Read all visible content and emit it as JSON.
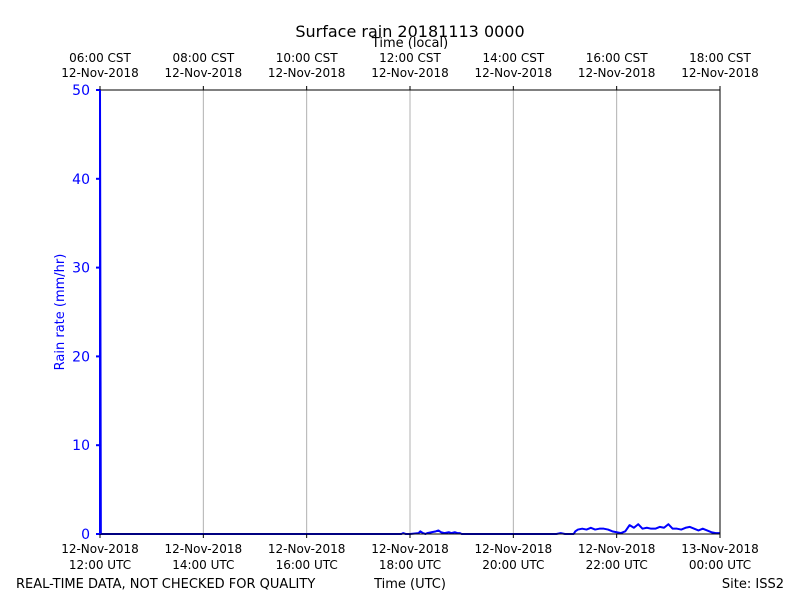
{
  "chart_data": {
    "type": "line",
    "title": "Surface rain 20181113 0000",
    "xlabel": "Time (UTC)",
    "x2label": "Time (local)",
    "ylabel": "Rain rate (mm/hr)",
    "footer_left": "REAL-TIME DATA, NOT CHECKED FOR QUALITY",
    "footer_right": "Site: ISS2",
    "xlim": [
      "2018-11-12 12:00",
      "2018-11-13 00:00"
    ],
    "ylim": [
      0,
      50
    ],
    "yticks": [
      0,
      10,
      20,
      30,
      40,
      50
    ],
    "grid": "vertical",
    "xticks_bottom": [
      {
        "t": "2018-11-12 12:00",
        "line1": "12-Nov-2018",
        "line2": "12:00 UTC"
      },
      {
        "t": "2018-11-12 14:00",
        "line1": "12-Nov-2018",
        "line2": "14:00 UTC"
      },
      {
        "t": "2018-11-12 16:00",
        "line1": "12-Nov-2018",
        "line2": "16:00 UTC"
      },
      {
        "t": "2018-11-12 18:00",
        "line1": "12-Nov-2018",
        "line2": "18:00 UTC"
      },
      {
        "t": "2018-11-12 20:00",
        "line1": "12-Nov-2018",
        "line2": "20:00 UTC"
      },
      {
        "t": "2018-11-12 22:00",
        "line1": "12-Nov-2018",
        "line2": "22:00 UTC"
      },
      {
        "t": "2018-11-13 00:00",
        "line1": "13-Nov-2018",
        "line2": "00:00 UTC"
      }
    ],
    "xticks_top": [
      {
        "t": "2018-11-12 12:00",
        "line1": "06:00 CST",
        "line2": "12-Nov-2018"
      },
      {
        "t": "2018-11-12 14:00",
        "line1": "08:00 CST",
        "line2": "12-Nov-2018"
      },
      {
        "t": "2018-11-12 16:00",
        "line1": "10:00 CST",
        "line2": "12-Nov-2018"
      },
      {
        "t": "2018-11-12 18:00",
        "line1": "12:00 CST",
        "line2": "12-Nov-2018"
      },
      {
        "t": "2018-11-12 20:00",
        "line1": "14:00 CST",
        "line2": "12-Nov-2018"
      },
      {
        "t": "2018-11-12 22:00",
        "line1": "16:00 CST",
        "line2": "12-Nov-2018"
      },
      {
        "t": "2018-11-13 00:00",
        "line1": "18:00 CST",
        "line2": "12-Nov-2018"
      }
    ],
    "colors": {
      "series": "#0000ff",
      "ylabel": "#0000ff",
      "grid": "#b0b0b0",
      "text": "#000000"
    },
    "series": [
      {
        "x": [
          "2018-11-12 12:00",
          "2018-11-12 12:00",
          "2018-11-12 12:01",
          "2018-11-12 17:50",
          "2018-11-12 17:52",
          "2018-11-12 17:55",
          "2018-11-12 18:00",
          "2018-11-12 18:10",
          "2018-11-12 18:12",
          "2018-11-12 18:15",
          "2018-11-12 18:18",
          "2018-11-12 18:20",
          "2018-11-12 18:30",
          "2018-11-12 18:33",
          "2018-11-12 18:36",
          "2018-11-12 18:40",
          "2018-11-12 18:45",
          "2018-11-12 18:48",
          "2018-11-12 18:52",
          "2018-11-12 18:55",
          "2018-11-12 18:58",
          "2018-11-12 19:00",
          "2018-11-12 19:05",
          "2018-11-12 20:50",
          "2018-11-12 20:55",
          "2018-11-12 21:00",
          "2018-11-12 21:10",
          "2018-11-12 21:12",
          "2018-11-12 21:15",
          "2018-11-12 21:20",
          "2018-11-12 21:25",
          "2018-11-12 21:30",
          "2018-11-12 21:35",
          "2018-11-12 21:40",
          "2018-11-12 21:45",
          "2018-11-12 21:50",
          "2018-11-12 21:55",
          "2018-11-12 22:00",
          "2018-11-12 22:05",
          "2018-11-12 22:10",
          "2018-11-12 22:15",
          "2018-11-12 22:20",
          "2018-11-12 22:25",
          "2018-11-12 22:30",
          "2018-11-12 22:35",
          "2018-11-12 22:40",
          "2018-11-12 22:45",
          "2018-11-12 22:50",
          "2018-11-12 22:55",
          "2018-11-12 23:00",
          "2018-11-12 23:05",
          "2018-11-12 23:10",
          "2018-11-12 23:15",
          "2018-11-12 23:20",
          "2018-11-12 23:25",
          "2018-11-12 23:30",
          "2018-11-12 23:35",
          "2018-11-12 23:40",
          "2018-11-12 23:45",
          "2018-11-12 23:50",
          "2018-11-12 23:55",
          "2018-11-13 00:00"
        ],
        "y": [
          0,
          50,
          0,
          0,
          0.1,
          0,
          0,
          0.1,
          0.3,
          0.1,
          0,
          0.1,
          0.3,
          0.4,
          0.2,
          0.1,
          0.2,
          0.1,
          0.2,
          0.1,
          0.1,
          0,
          0,
          0,
          0.1,
          0,
          0,
          0.3,
          0.5,
          0.6,
          0.5,
          0.7,
          0.5,
          0.6,
          0.6,
          0.5,
          0.3,
          0.2,
          0.1,
          0.3,
          1.0,
          0.7,
          1.1,
          0.6,
          0.7,
          0.6,
          0.6,
          0.8,
          0.7,
          1.1,
          0.6,
          0.6,
          0.5,
          0.7,
          0.8,
          0.6,
          0.4,
          0.6,
          0.4,
          0.2,
          0.1,
          0.1
        ]
      }
    ]
  }
}
